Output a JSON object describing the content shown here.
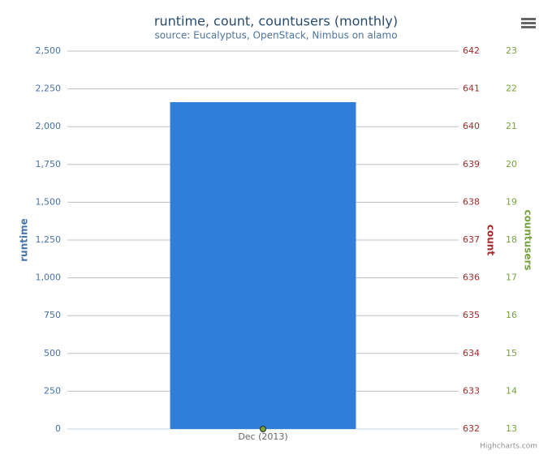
{
  "chart_data": {
    "type": "combo",
    "title": "runtime, count, countusers (monthly)",
    "subtitle": "source: Eucalyptus, OpenStack, Nimbus on alamo",
    "categories": [
      "Dec (2013)"
    ],
    "series": [
      {
        "name": "runtime",
        "type": "bar",
        "color": "#2f7ed8",
        "axis": "y",
        "values": [
          2162
        ]
      },
      {
        "name": "count",
        "type": "line",
        "color": "#a52a2a",
        "axis": "y2",
        "values": [
          632
        ]
      },
      {
        "name": "countusers",
        "type": "line",
        "color": "#77a13b",
        "axis": "y3",
        "values": [
          13
        ]
      }
    ],
    "ylabel": "runtime",
    "y2label": "count",
    "y3label": "countusers",
    "ylim": [
      0,
      2500
    ],
    "yticks": [
      0,
      250,
      500,
      750,
      {
        "value": 1000,
        "label": "1,000"
      },
      {
        "value": 1250,
        "label": "1,250"
      },
      {
        "value": 1500,
        "label": "1,500"
      },
      {
        "value": 1750,
        "label": "1,750"
      },
      {
        "value": 2000,
        "label": "2,000"
      },
      {
        "value": 2250,
        "label": "2,250"
      },
      {
        "value": 2500,
        "label": "2,500"
      }
    ],
    "y2lim": [
      632,
      642
    ],
    "y2ticks": [
      632,
      633,
      634,
      635,
      636,
      637,
      638,
      639,
      640,
      641,
      642
    ],
    "y3lim": [
      13,
      23
    ],
    "y3ticks": [
      13,
      14,
      15,
      16,
      17,
      18,
      19,
      20,
      21,
      22,
      23
    ],
    "grid": true,
    "credits": "Highcharts.com"
  }
}
